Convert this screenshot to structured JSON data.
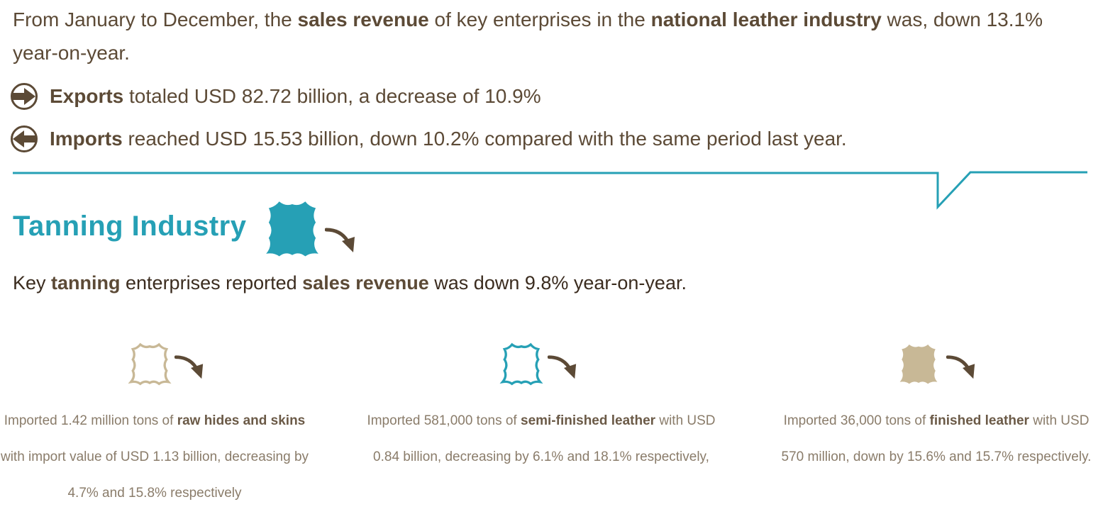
{
  "intro": {
    "part1": "From January to December, the ",
    "bold1": "sales revenue",
    "part2": " of key enterprises in the ",
    "bold2": "national leather industry",
    "part3": " was, down 13.1% year-on-year."
  },
  "exports": {
    "label": "Exports",
    "text": " totaled USD 82.72 billion, a decrease of 10.9%"
  },
  "imports": {
    "label": "Imports",
    "text": " reached USD 15.53 billion, down 10.2% compared with the same period last year."
  },
  "section": {
    "title": "Tanning Industry",
    "summary_pre": "Key ",
    "summary_bold1": "tanning",
    "summary_mid": " enterprises reported ",
    "summary_bold2": "sales revenue",
    "summary_post": " was down 9.8% year-on-year."
  },
  "items": [
    {
      "pre": "Imported 1.42 million tons of ",
      "bold": "raw hides and skins",
      "post": " with import value of USD 1.13 billion, decreasing by 4.7% and 15.8% respectively"
    },
    {
      "pre": "Imported 581,000 tons of ",
      "bold": "semi-finished leather",
      "post": " with USD 0.84 billion, decreasing by 6.1% and 18.1% respectively,"
    },
    {
      "pre": "Imported 36,000 tons of ",
      "bold": "finished leather",
      "post": " with USD 570 million, down by 15.6% and 15.7% respectively."
    }
  ],
  "colors": {
    "brown": "#5c4a36",
    "teal": "#26a0b5",
    "beige": "#c8b896",
    "gray_text": "#8a7c6a"
  },
  "icons": [
    "arrow-right-circle-icon",
    "arrow-left-circle-icon",
    "leather-hide-icon",
    "trend-down-arrow-icon"
  ]
}
